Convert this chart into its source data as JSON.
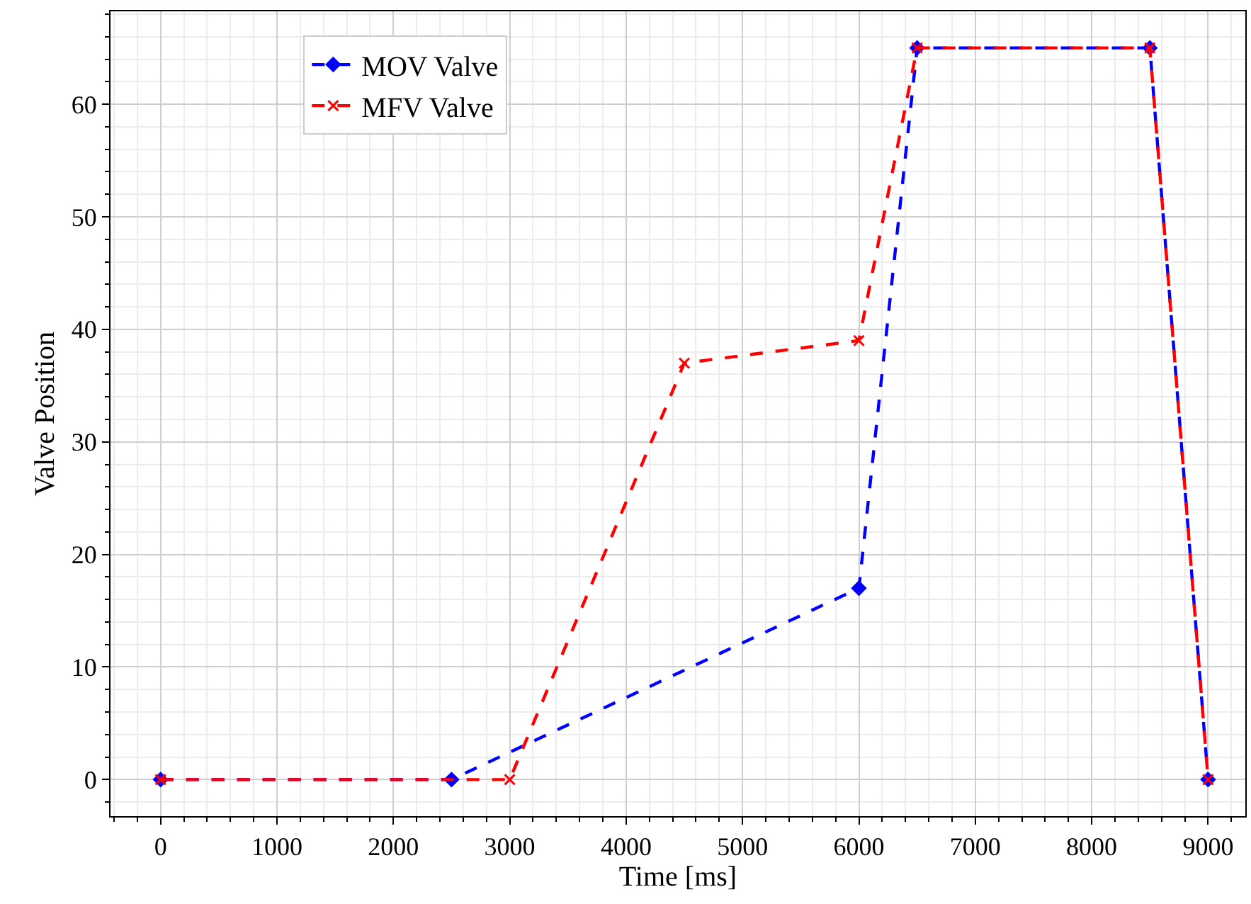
{
  "chart_data": {
    "type": "line",
    "xlabel": "Time [ms]",
    "ylabel": "Valve Position",
    "xlim": [
      -430,
      9320
    ],
    "ylim": [
      -3.25,
      68.25
    ],
    "xticks": [
      0,
      1000,
      2000,
      3000,
      4000,
      5000,
      6000,
      7000,
      8000,
      9000
    ],
    "yticks": [
      0,
      10,
      20,
      30,
      40,
      50,
      60
    ],
    "grid": true,
    "legend": "top left",
    "line_style": "dashed",
    "series": [
      {
        "name": "MOV Valve",
        "color": "#0000ff",
        "marker": "diamond",
        "x": [
          0,
          2500,
          6000,
          6500,
          8500,
          9000
        ],
        "values": [
          0,
          0,
          17,
          65,
          65,
          0
        ]
      },
      {
        "name": "MFV Valve",
        "color": "#ff0000",
        "marker": "cross",
        "x": [
          0,
          3000,
          4500,
          6000,
          6500,
          8500,
          9000
        ],
        "values": [
          0,
          0,
          37,
          39,
          65,
          65,
          0
        ]
      }
    ]
  }
}
